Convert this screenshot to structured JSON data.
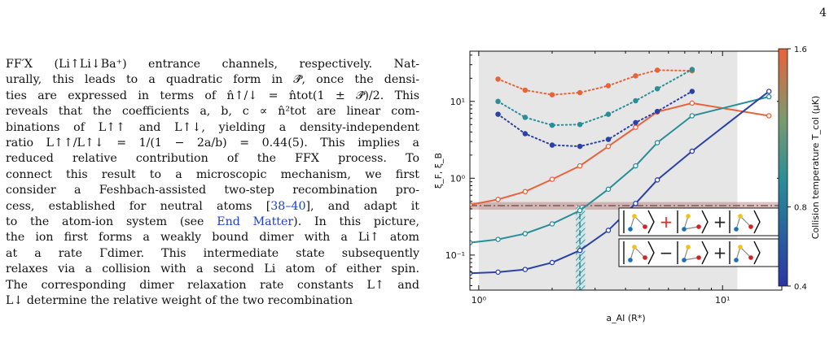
{
  "page_number": "4",
  "paragraph": {
    "lines": [
      [
        "FF′X (Li↑Li↓Ba⁺) entrance channels, respectively. Nat-"
      ],
      [
        "urally, this leads to a quadratic form in 𝒫̂, once the densi-"
      ],
      [
        "ties are expressed in terms of n̂↑/↓ = n̂tot(1 ± 𝒫̂)/2. This"
      ],
      [
        "reveals that the coefficients a, b, c ∝ n̂²tot are linear com-"
      ],
      [
        "binations of L↑↑ and L↑↓, yielding a density-independent"
      ],
      [
        "ratio L↑↑/L↑↓ = 1/(1 − 2a/b) = 0.44(5). This implies a"
      ],
      [
        "reduced relative contribution of the FFX process. To"
      ],
      [
        "connect this result to a microscopic mechanism, we first"
      ],
      [
        "consider a Feshbach-assisted two-step recombination pro-"
      ],
      [
        "cess, established for neutral atoms [",
        "38–40",
        "], and adapt it"
      ],
      [
        "to the atom-ion system (see ",
        "End Matter",
        "). In this picture,"
      ],
      [
        "the ion first forms a weakly bound dimer with a Li↑ atom"
      ],
      [
        "at a rate Γdimer. This intermediate state subsequently"
      ],
      [
        "relaxes via a collision with a second Li atom of either spin."
      ],
      [
        "The corresponding dimer relaxation rate constants L↑ and"
      ],
      [
        "L↓ determine the relative weight of the two recombination"
      ]
    ]
  },
  "chart_data": {
    "type": "line",
    "xlabel": "a_AI (R*)",
    "ylabel": "ξ_F, ξ_B",
    "x_scale": "log",
    "y_scale": "log",
    "xlim": [
      0.92,
      17.5
    ],
    "ylim": [
      0.035,
      45
    ],
    "x_ticks": [
      {
        "value": 1,
        "label": "10⁰"
      },
      {
        "value": 10,
        "label": "10¹"
      }
    ],
    "y_ticks": [
      {
        "value": 0.1,
        "label": "10⁻¹"
      },
      {
        "value": 1,
        "label": "10⁰"
      },
      {
        "value": 10,
        "label": "10¹"
      }
    ],
    "shaded_region_x": [
      1.0,
      11.5
    ],
    "horizontal_band": {
      "y": 0.44,
      "low": 0.39,
      "high": 0.49,
      "color": "#b07b76"
    },
    "vertical_band": {
      "x": 2.6,
      "low": 2.5,
      "high": 2.73,
      "color": "#5aa9b0"
    },
    "solid_series": [
      {
        "color": "#e8623a",
        "x": [
          0.92,
          1.2,
          1.55,
          2.0,
          2.6,
          3.4,
          4.4,
          5.4,
          7.5,
          15.5
        ],
        "y": [
          0.45,
          0.53,
          0.67,
          0.97,
          1.45,
          2.6,
          4.6,
          7.3,
          9.5,
          6.5
        ]
      },
      {
        "color": "#2a8e97",
        "x": [
          0.92,
          1.2,
          1.55,
          2.0,
          2.6,
          3.4,
          4.4,
          5.4,
          7.5,
          15.5
        ],
        "y": [
          0.145,
          0.16,
          0.19,
          0.255,
          0.38,
          0.72,
          1.45,
          2.9,
          6.5,
          11.5
        ]
      },
      {
        "color": "#2a41a8",
        "x": [
          0.92,
          1.2,
          1.55,
          2.0,
          2.6,
          3.4,
          4.4,
          5.4,
          7.5,
          15.5
        ],
        "y": [
          0.058,
          0.06,
          0.065,
          0.08,
          0.115,
          0.21,
          0.47,
          0.95,
          2.25,
          13.5
        ]
      }
    ],
    "dotted_series": [
      {
        "color": "#e8623a",
        "x": [
          1.2,
          1.55,
          2.0,
          2.6,
          3.4,
          4.4,
          5.4,
          7.5
        ],
        "y": [
          19.5,
          14.0,
          12.2,
          13.0,
          16.0,
          21.5,
          25.5,
          25.0
        ]
      },
      {
        "color": "#2a8e97",
        "x": [
          1.2,
          1.55,
          2.0,
          2.6,
          3.4,
          4.4,
          5.4,
          7.5
        ],
        "y": [
          10.0,
          6.2,
          4.9,
          5.0,
          6.8,
          10.2,
          14.6,
          26.0
        ]
      },
      {
        "color": "#2a41a8",
        "x": [
          1.2,
          1.55,
          2.0,
          2.6,
          3.4,
          4.4,
          5.4,
          7.5
        ],
        "y": [
          6.8,
          3.8,
          2.7,
          2.6,
          3.2,
          5.3,
          7.4,
          13.5
        ]
      }
    ],
    "legend": {
      "placement": "bottom-right",
      "rows": [
        {
          "ops": [
            "+",
            "+"
          ],
          "op_colors": [
            "#e02a2a",
            "#222222"
          ]
        },
        {
          "ops": [
            "−",
            "+"
          ],
          "op_colors": [
            "#222222",
            "#222222"
          ]
        }
      ],
      "molecule_colors": {
        "atom_a": "#1a6fb5",
        "atom_b": "#f0c020",
        "atom_c": "#d42020"
      }
    },
    "colorbar": {
      "label": "Collision temperature T_col (μK)",
      "ticks": [
        {
          "value": 1.6,
          "label": "1.6"
        },
        {
          "value": 0.8,
          "label": "0.8"
        },
        {
          "value": 0.4,
          "label": "0.4"
        }
      ],
      "range": [
        0.4,
        1.6
      ],
      "colors": [
        "#2a35a5",
        "#2a8e97",
        "#e8623a"
      ]
    }
  }
}
